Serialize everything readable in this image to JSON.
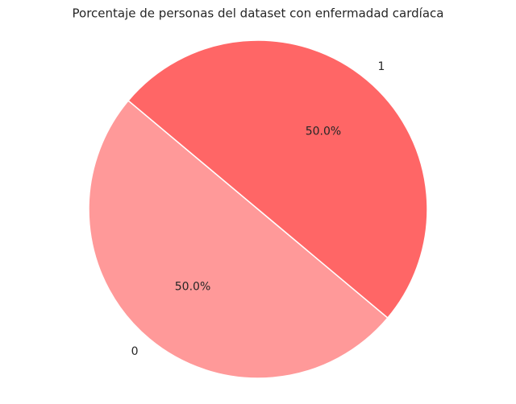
{
  "chart_data": {
    "type": "pie",
    "title": "Porcentaje de personas del dataset con enfermadad cardíaca",
    "categories": [
      "0",
      "1"
    ],
    "values": [
      50,
      50
    ],
    "value_labels": [
      "50.0%",
      "50.0%"
    ],
    "colors": [
      "#ff9999",
      "#ff6666"
    ]
  }
}
